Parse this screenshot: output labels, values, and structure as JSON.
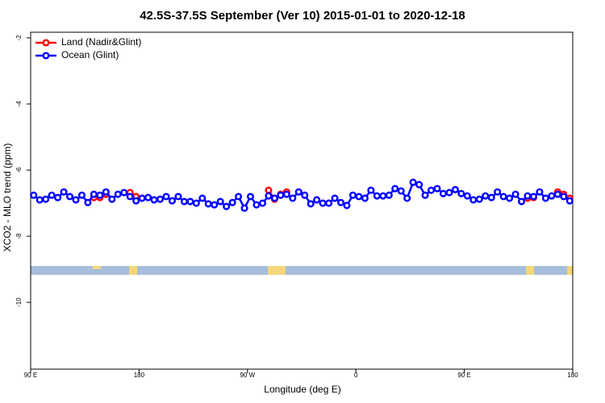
{
  "chart_data": {
    "type": "line",
    "title": "42.5S-37.5S September (Ver 10)   2015-01-01 to 2020-12-18",
    "xlabel": "Longitude (deg E)",
    "ylabel": "XCO2 - MLO trend (ppm)",
    "legend": "top-left",
    "xlim": [
      90,
      540
    ],
    "ylim": [
      -12.02,
      -1.83
    ],
    "yticks": [
      -2,
      -4,
      -6,
      -8,
      -10
    ],
    "xticks": [
      {
        "value": 90,
        "label": "90 E"
      },
      {
        "value": 180,
        "label": "180"
      },
      {
        "value": 270,
        "label": "90 W"
      },
      {
        "value": 360,
        "label": "0"
      },
      {
        "value": 450,
        "label": "90 E"
      },
      {
        "value": 540,
        "label": "180"
      }
    ],
    "x": [
      92.5,
      97.5,
      102.5,
      107.5,
      112.5,
      117.5,
      122.5,
      127.5,
      132.5,
      137.5,
      142.5,
      147.5,
      152.5,
      157.5,
      162.5,
      167.5,
      172.5,
      177.5,
      182.5,
      187.5,
      192.5,
      197.5,
      202.5,
      207.5,
      212.5,
      217.5,
      222.5,
      227.5,
      232.5,
      237.5,
      242.5,
      247.5,
      252.5,
      257.5,
      262.5,
      267.5,
      272.5,
      277.5,
      282.5,
      287.5,
      292.5,
      297.5,
      302.5,
      307.5,
      312.5,
      317.5,
      322.5,
      327.5,
      332.5,
      337.5,
      342.5,
      347.5,
      352.5,
      357.5,
      362.5,
      367.5,
      372.5,
      377.5,
      382.5,
      387.5,
      392.5,
      397.5,
      402.5,
      407.5,
      412.5,
      417.5,
      422.5,
      427.5,
      432.5,
      437.5,
      442.5,
      447.5,
      452.5,
      457.5,
      462.5,
      467.5,
      472.5,
      477.5,
      482.5,
      487.5,
      492.5,
      497.5,
      502.5,
      507.5,
      512.5,
      517.5,
      522.5,
      527.5,
      532.5,
      537.5
    ],
    "series": [
      {
        "name": "Land (Nadir&Glint)",
        "color": "#ff0000",
        "values": [
          null,
          null,
          null,
          null,
          null,
          null,
          null,
          null,
          null,
          null,
          -6.83,
          -6.83,
          -6.73,
          null,
          null,
          null,
          -6.68,
          -6.8,
          null,
          null,
          null,
          null,
          null,
          null,
          null,
          null,
          null,
          null,
          null,
          null,
          null,
          null,
          null,
          null,
          null,
          null,
          null,
          null,
          null,
          -6.61,
          -6.88,
          -6.73,
          -6.66,
          null,
          null,
          null,
          null,
          null,
          null,
          null,
          null,
          null,
          null,
          null,
          null,
          null,
          null,
          null,
          null,
          null,
          null,
          null,
          null,
          null,
          null,
          null,
          null,
          null,
          null,
          null,
          null,
          null,
          null,
          null,
          null,
          null,
          null,
          null,
          null,
          null,
          null,
          null,
          -6.85,
          -6.83,
          null,
          null,
          null,
          -6.66,
          -6.73,
          -6.85
        ]
      },
      {
        "name": "Ocean (Glint)",
        "color": "#0000ff",
        "values": [
          -6.76,
          -6.9,
          -6.88,
          -6.76,
          -6.83,
          -6.66,
          -6.8,
          -6.9,
          -6.76,
          -6.98,
          -6.73,
          -6.76,
          -6.66,
          -6.88,
          -6.73,
          -6.68,
          -6.8,
          -6.93,
          -6.85,
          -6.83,
          -6.9,
          -6.88,
          -6.8,
          -6.93,
          -6.8,
          -6.95,
          -6.95,
          -7.0,
          -6.85,
          -7.02,
          -7.05,
          -6.95,
          -7.1,
          -6.98,
          -6.8,
          -7.15,
          -6.8,
          -7.05,
          -7.0,
          -6.78,
          -6.85,
          -6.76,
          -6.73,
          -6.85,
          -6.66,
          -6.76,
          -7.02,
          -6.9,
          -7.0,
          -7.0,
          -6.85,
          -6.98,
          -7.07,
          -6.76,
          -6.8,
          -6.85,
          -6.61,
          -6.78,
          -6.78,
          -6.76,
          -6.56,
          -6.63,
          -6.85,
          -6.37,
          -6.44,
          -6.76,
          -6.61,
          -6.56,
          -6.71,
          -6.68,
          -6.59,
          -6.71,
          -6.78,
          -6.9,
          -6.88,
          -6.78,
          -6.83,
          -6.66,
          -6.8,
          -6.85,
          -6.73,
          -6.95,
          -6.78,
          -6.8,
          -6.66,
          -6.85,
          -6.78,
          -6.73,
          -6.8,
          -6.93
        ]
      }
    ]
  }
}
